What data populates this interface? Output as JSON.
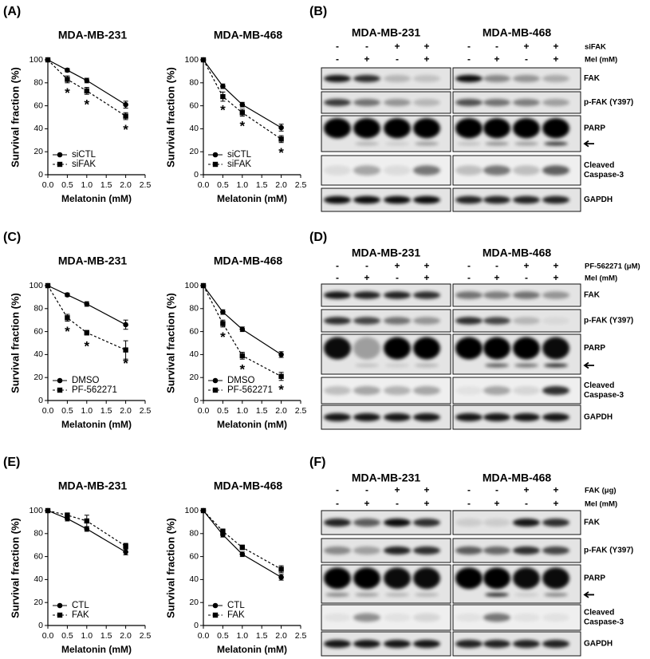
{
  "plot_labels": [
    "(A)",
    "(C)",
    "(E)"
  ],
  "blots": [
    {
      "label": "(B)",
      "cells": [
        "MDA-MB-231",
        "MDA-MB-468"
      ],
      "treatments": [
        {
          "label": "siFAK",
          "signs": [
            "-",
            "-",
            "+",
            "+"
          ]
        },
        {
          "label": "Mel (mM)",
          "signs": [
            "-",
            "+",
            "-",
            "+"
          ]
        }
      ],
      "bands": [
        [
          "FAK"
        ],
        [
          "p-FAK (Y397)"
        ],
        [
          "PARP"
        ],
        [
          "Cleaved",
          "Caspase-3"
        ],
        [
          "GAPDH"
        ]
      ]
    },
    {
      "label": "(D)",
      "cells": [
        "MDA-MB-231",
        "MDA-MB-468"
      ],
      "treatments": [
        {
          "label": "PF-562271 (μM)",
          "signs": [
            "-",
            "-",
            "+",
            "+"
          ]
        },
        {
          "label": "Mel (mM)",
          "signs": [
            "-",
            "+",
            "-",
            "+"
          ]
        }
      ],
      "bands": [
        [
          "FAK"
        ],
        [
          "p-FAK (Y397)"
        ],
        [
          "PARP"
        ],
        [
          "Cleaved",
          "Caspase-3"
        ],
        [
          "GAPDH"
        ]
      ]
    },
    {
      "label": "(F)",
      "cells": [
        "MDA-MB-231",
        "MDA-MB-468"
      ],
      "treatments": [
        {
          "label": "FAK (μg)",
          "signs": [
            "-",
            "-",
            "+",
            "+"
          ]
        },
        {
          "label": "Mel (mM)",
          "signs": [
            "-",
            "+",
            "-",
            "+"
          ]
        }
      ],
      "bands": [
        [
          "FAK"
        ],
        [
          "p-FAK (Y397)"
        ],
        [
          "PARP"
        ],
        [
          "Cleaved",
          "Caspase-3"
        ],
        [
          "GAPDH"
        ]
      ]
    }
  ],
  "chart_data": [
    {
      "type": "line",
      "title": "MDA-MB-231",
      "xlabel": "Melatonin (mM)",
      "ylabel": "Survival fraction (%)",
      "x": [
        0,
        0.5,
        1,
        2
      ],
      "xlim": [
        0,
        2.5
      ],
      "xticks": [
        {
          "value": 0,
          "label": "0.0"
        },
        0.5,
        {
          "value": 1,
          "label": "1.0"
        },
        1.5,
        {
          "value": 2,
          "label": "2.0"
        },
        2.5
      ],
      "ylim": [
        0,
        100
      ],
      "yticks": [
        0,
        20,
        40,
        60,
        80,
        100
      ],
      "legend": "lower left",
      "series": [
        {
          "name": "siCTL",
          "color": "#000000",
          "marker": "circle",
          "linestyle": "solid",
          "values": [
            100,
            91,
            82,
            61
          ],
          "errors": [
            0,
            1.5,
            2,
            3
          ]
        },
        {
          "name": "siFAK",
          "color": "#000000",
          "marker": "square",
          "linestyle": "dashed",
          "values": [
            100,
            83,
            73,
            51
          ],
          "errors": [
            0,
            3,
            3,
            3
          ],
          "significance": [
            null,
            "*",
            "*",
            "*"
          ]
        }
      ]
    },
    {
      "type": "line",
      "title": "MDA-MB-468",
      "xlabel": "Melatonin (mM)",
      "ylabel": "Survival fraction (%)",
      "x": [
        0,
        0.5,
        1,
        2
      ],
      "xlim": [
        0,
        2.5
      ],
      "xticks": [
        {
          "value": 0,
          "label": "0.0"
        },
        0.5,
        {
          "value": 1,
          "label": "1.0"
        },
        1.5,
        {
          "value": 2,
          "label": "2.0"
        },
        2.5
      ],
      "ylim": [
        0,
        100
      ],
      "yticks": [
        0,
        20,
        40,
        60,
        80,
        100
      ],
      "legend": "lower left",
      "series": [
        {
          "name": "siCTL",
          "color": "#000000",
          "marker": "circle",
          "linestyle": "solid",
          "values": [
            100,
            77,
            61,
            41
          ],
          "errors": [
            0,
            2,
            2,
            3
          ]
        },
        {
          "name": "siFAK",
          "color": "#000000",
          "marker": "square",
          "linestyle": "dashed",
          "values": [
            100,
            68,
            54,
            31
          ],
          "errors": [
            0,
            4,
            3,
            3
          ],
          "significance": [
            null,
            "*",
            "*",
            "*"
          ]
        }
      ]
    },
    {
      "type": "line",
      "title": "MDA-MB-231",
      "xlabel": "Melatonin (mM)",
      "ylabel": "Survival fraction (%)",
      "x": [
        0,
        0.5,
        1,
        2
      ],
      "xlim": [
        0,
        2.5
      ],
      "xticks": [
        {
          "value": 0,
          "label": "0.0"
        },
        0.5,
        {
          "value": 1,
          "label": "1.0"
        },
        1.5,
        {
          "value": 2,
          "label": "2.0"
        },
        2.5
      ],
      "ylim": [
        0,
        100
      ],
      "yticks": [
        0,
        20,
        40,
        60,
        80,
        100
      ],
      "legend": "lower left",
      "series": [
        {
          "name": "DMSO",
          "color": "#000000",
          "marker": "circle",
          "linestyle": "solid",
          "values": [
            100,
            92,
            84,
            66
          ],
          "errors": [
            0,
            1.5,
            2,
            4
          ]
        },
        {
          "name": "PF-562271",
          "color": "#000000",
          "marker": "square",
          "linestyle": "dashed",
          "values": [
            100,
            72,
            59,
            44
          ],
          "errors": [
            0,
            3,
            2,
            8
          ],
          "significance": [
            null,
            "*",
            "*",
            "*"
          ]
        }
      ]
    },
    {
      "type": "line",
      "title": "MDA-MB-468",
      "xlabel": "Melatonin (mM)",
      "ylabel": "Survival fraction (%)",
      "x": [
        0,
        0.5,
        1,
        2
      ],
      "xlim": [
        0,
        2.5
      ],
      "xticks": [
        {
          "value": 0,
          "label": "0.0"
        },
        0.5,
        {
          "value": 1,
          "label": "1.0"
        },
        1.5,
        {
          "value": 2,
          "label": "2.0"
        },
        2.5
      ],
      "ylim": [
        0,
        100
      ],
      "yticks": [
        0,
        20,
        40,
        60,
        80,
        100
      ],
      "legend": "lower left",
      "series": [
        {
          "name": "DMSO",
          "color": "#000000",
          "marker": "circle",
          "linestyle": "solid",
          "values": [
            100,
            77,
            62,
            40
          ],
          "errors": [
            0,
            2,
            2,
            2.5
          ]
        },
        {
          "name": "PF-562271",
          "color": "#000000",
          "marker": "square",
          "linestyle": "dashed",
          "values": [
            100,
            67,
            39,
            21
          ],
          "errors": [
            0,
            3,
            3,
            3.5
          ],
          "significance": [
            null,
            "*",
            "*",
            "*"
          ]
        }
      ]
    },
    {
      "type": "line",
      "title": "MDA-MB-231",
      "xlabel": "Melatonin (mM)",
      "ylabel": "Survival fraction (%)",
      "x": [
        0,
        0.5,
        1,
        2
      ],
      "xlim": [
        0,
        2.5
      ],
      "xticks": [
        {
          "value": 0,
          "label": "0.0"
        },
        0.5,
        {
          "value": 1,
          "label": "1.0"
        },
        1.5,
        {
          "value": 2,
          "label": "2.0"
        },
        2.5
      ],
      "ylim": [
        0,
        100
      ],
      "yticks": [
        0,
        20,
        40,
        60,
        80,
        100
      ],
      "legend": "lower left",
      "series": [
        {
          "name": "CTL",
          "color": "#000000",
          "marker": "circle",
          "linestyle": "solid",
          "values": [
            100,
            93,
            84,
            64
          ],
          "errors": [
            0,
            2,
            2,
            2.5
          ]
        },
        {
          "name": "FAK",
          "color": "#000000",
          "marker": "square",
          "linestyle": "dashed",
          "values": [
            100,
            96,
            91,
            69
          ],
          "errors": [
            0,
            2,
            5,
            2.5
          ]
        }
      ]
    },
    {
      "type": "line",
      "title": "MDA-MB-468",
      "xlabel": "Melatonin (mM)",
      "ylabel": "Survival fraction (%)",
      "x": [
        0,
        0.5,
        1,
        2
      ],
      "xlim": [
        0,
        2.5
      ],
      "xticks": [
        {
          "value": 0,
          "label": "0.0"
        },
        0.5,
        {
          "value": 1,
          "label": "1.0"
        },
        1.5,
        {
          "value": 2,
          "label": "2.0"
        },
        2.5
      ],
      "ylim": [
        0,
        100
      ],
      "yticks": [
        0,
        20,
        40,
        60,
        80,
        100
      ],
      "legend": "lower left",
      "series": [
        {
          "name": "CTL",
          "color": "#000000",
          "marker": "circle",
          "linestyle": "solid",
          "values": [
            100,
            79,
            62,
            42
          ],
          "errors": [
            0,
            2,
            2,
            2.5
          ]
        },
        {
          "name": "FAK",
          "color": "#000000",
          "marker": "square",
          "linestyle": "dashed",
          "values": [
            100,
            82,
            68,
            49
          ],
          "errors": [
            0,
            2,
            2,
            3
          ]
        }
      ]
    }
  ]
}
